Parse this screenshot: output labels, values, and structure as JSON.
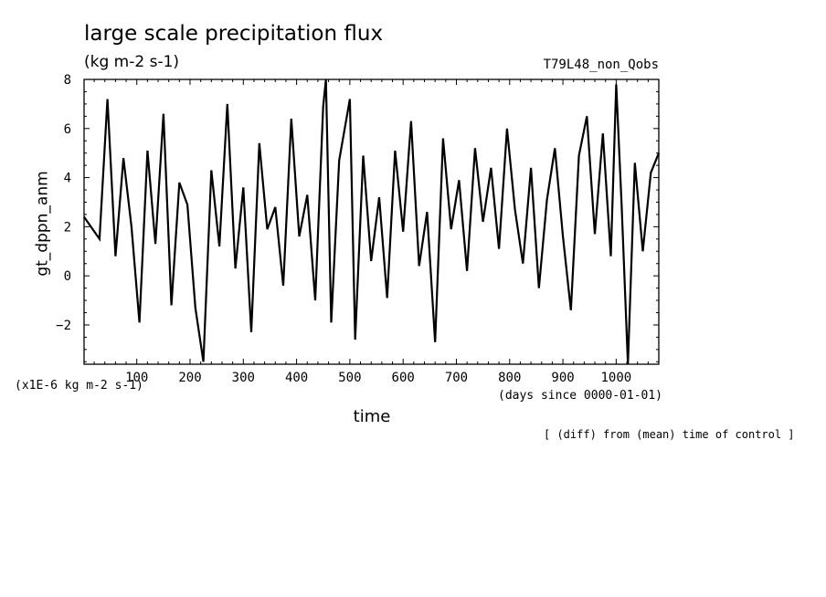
{
  "chart_data": {
    "type": "line",
    "title": "large scale precipitation flux",
    "subtitle": "(kg m-2 s-1)",
    "run_label": "T79L48_non_Qobs",
    "ylabel": "gt_dppn_anm",
    "y_units": "(x1E-6 kg m-2 s-1)",
    "xlabel": "time",
    "x_units": "(days since 0000-01-01)",
    "footnote": "[ (diff) from (mean) time of control ]",
    "xlim": [
      1,
      1080
    ],
    "ylim": [
      -3.6,
      8
    ],
    "x_ticks": [
      100,
      200,
      300,
      400,
      500,
      600,
      700,
      800,
      900,
      1000
    ],
    "y_ticks": [
      -2,
      0,
      2,
      4,
      6,
      8
    ],
    "grid": false,
    "series": [
      {
        "x": [
          1,
          30,
          45,
          60,
          75,
          90,
          105,
          120,
          135,
          150,
          165,
          180,
          195,
          210,
          225,
          240,
          255,
          270,
          285,
          300,
          315,
          330,
          345,
          360,
          375,
          390,
          405,
          420,
          435,
          450,
          455,
          465,
          480,
          500,
          510,
          525,
          540,
          555,
          570,
          585,
          600,
          615,
          630,
          645,
          660,
          675,
          690,
          705,
          720,
          735,
          750,
          765,
          780,
          795,
          810,
          825,
          840,
          855,
          870,
          885,
          900,
          915,
          930,
          945,
          960,
          975,
          990,
          1000,
          1010,
          1022,
          1035,
          1050,
          1065,
          1080
        ],
        "y": [
          2.4,
          1.5,
          7.2,
          0.8,
          4.8,
          2.0,
          -1.9,
          5.1,
          1.3,
          6.6,
          -1.2,
          3.8,
          2.9,
          -1.3,
          -3.5,
          4.3,
          1.2,
          7.0,
          0.3,
          3.6,
          -2.3,
          5.4,
          1.9,
          2.8,
          -0.4,
          6.4,
          1.6,
          3.3,
          -1.0,
          6.9,
          8.0,
          -1.9,
          4.7,
          7.2,
          -2.6,
          4.9,
          0.6,
          3.2,
          -0.9,
          5.1,
          1.8,
          6.3,
          0.4,
          2.6,
          -2.7,
          5.6,
          1.9,
          3.9,
          0.2,
          5.2,
          2.2,
          4.4,
          1.1,
          6.0,
          2.7,
          0.5,
          4.4,
          -0.5,
          3.1,
          5.2,
          1.6,
          -1.4,
          4.9,
          6.5,
          1.7,
          5.8,
          0.8,
          7.8,
          3.0,
          -3.6,
          4.6,
          1.0,
          4.2,
          5.0
        ]
      }
    ]
  }
}
